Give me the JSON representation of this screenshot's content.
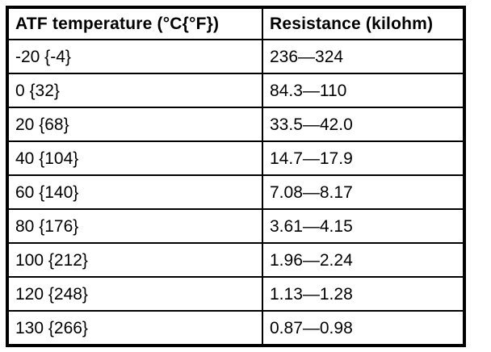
{
  "chart_data": {
    "type": "table",
    "title": "",
    "columns": [
      "ATF temperature (°C{°F})",
      "Resistance (kilohm)"
    ],
    "rows": [
      {
        "temperature": "-20 {-4}",
        "resistance": "236—324"
      },
      {
        "temperature": "0 {32}",
        "resistance": "84.3—110"
      },
      {
        "temperature": "20 {68}",
        "resistance": "33.5—42.0"
      },
      {
        "temperature": "40 {104}",
        "resistance": "14.7—17.9"
      },
      {
        "temperature": "60 {140}",
        "resistance": "7.08—8.17"
      },
      {
        "temperature": "80 {176}",
        "resistance": "3.61—4.15"
      },
      {
        "temperature": "100 {212}",
        "resistance": "1.96—2.24"
      },
      {
        "temperature": "120 {248}",
        "resistance": "1.13—1.28"
      },
      {
        "temperature": "130 {266}",
        "resistance": "0.87—0.98"
      }
    ],
    "colors": {
      "border": "#000000",
      "text": "#000000",
      "background": "#ffffff"
    }
  }
}
